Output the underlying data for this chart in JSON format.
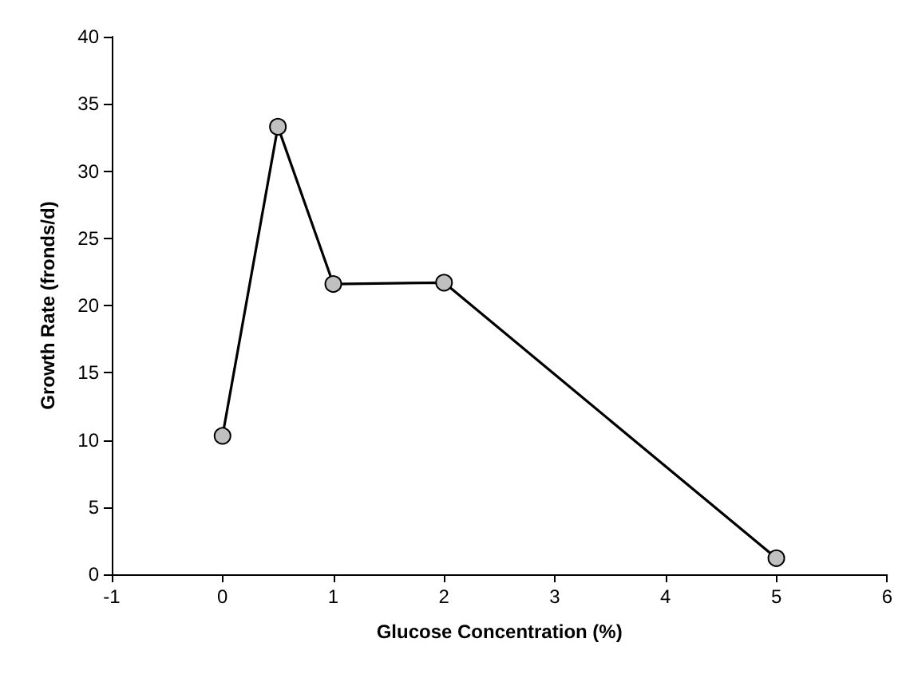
{
  "chart_data": {
    "type": "line",
    "xlabel": "Glucose Concentration (%)",
    "ylabel": "Growth Rate (fronds/d)",
    "x": [
      0,
      0.5,
      1,
      2,
      5
    ],
    "series": [
      {
        "color": "#000000",
        "values": [
          10.3,
          33.3,
          21.6,
          21.7,
          1.2
        ]
      }
    ],
    "xlim": [
      -1,
      6
    ],
    "xticks": [
      -1,
      0,
      1,
      2,
      3,
      4,
      5,
      6
    ],
    "ylim": [
      0,
      40
    ],
    "yticks": [
      0,
      5,
      10,
      15,
      20,
      25,
      30,
      35,
      40
    ],
    "marker": "circle",
    "line_style": "solid"
  }
}
